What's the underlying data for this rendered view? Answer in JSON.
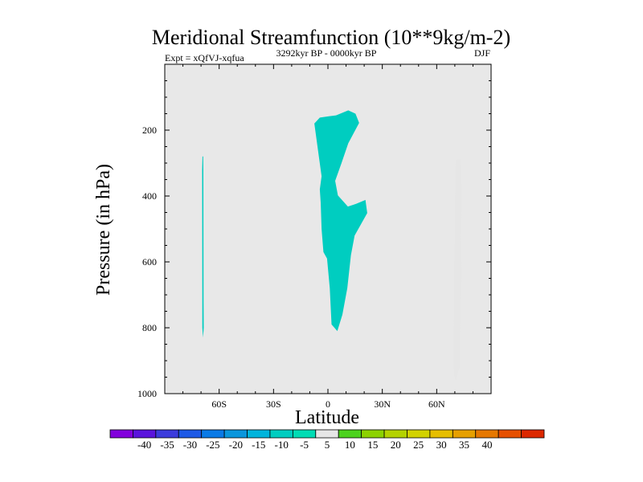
{
  "chart_data": {
    "type": "contour",
    "title": "Meridional Streamfunction (10**9kg/m-2)",
    "subtitle_left": "Expt = xQfVJ-xqfua",
    "subtitle_center": "3292kyr BP - 0000kyr BP",
    "subtitle_right": "DJF",
    "xlabel": "Latitude",
    "ylabel": "Pressure (in hPa)",
    "xlim": [
      -90,
      90
    ],
    "ylim": [
      1000,
      0
    ],
    "x_ticks": [
      {
        "value": -60,
        "label": "60S"
      },
      {
        "value": -30,
        "label": "30S"
      },
      {
        "value": 0,
        "label": "0"
      },
      {
        "value": 30,
        "label": "30N"
      },
      {
        "value": 60,
        "label": "60N"
      }
    ],
    "y_ticks": [
      {
        "value": 200,
        "label": "200"
      },
      {
        "value": 400,
        "label": "400"
      },
      {
        "value": 600,
        "label": "600"
      },
      {
        "value": 800,
        "label": "800"
      },
      {
        "value": 1000,
        "label": "1000"
      }
    ],
    "background_color": "#e8e8e8",
    "regions": [
      {
        "name": "southern-negative-sliver",
        "fill_index": 7,
        "points": [
          [
            -69.2,
            280
          ],
          [
            -68.8,
            280
          ],
          [
            -68.7,
            320
          ],
          [
            -68.6,
            720
          ],
          [
            -68.5,
            800
          ],
          [
            -68.9,
            830
          ],
          [
            -69.3,
            800
          ],
          [
            -69.3,
            720
          ],
          [
            -69.4,
            320
          ]
        ]
      },
      {
        "name": "tropical-negative-cell",
        "fill_index": 7,
        "points": [
          [
            -7.5,
            180
          ],
          [
            -4.5,
            162
          ],
          [
            0.5,
            158
          ],
          [
            4.5,
            155
          ],
          [
            11.2,
            140
          ],
          [
            15.2,
            150
          ],
          [
            17.2,
            178
          ],
          [
            11.2,
            240
          ],
          [
            7.5,
            300
          ],
          [
            4.0,
            354
          ],
          [
            5.5,
            398
          ],
          [
            11.0,
            432
          ],
          [
            15.5,
            424
          ],
          [
            20.7,
            412
          ],
          [
            21.7,
            452
          ],
          [
            14.7,
            520
          ],
          [
            12.7,
            580
          ],
          [
            10.7,
            680
          ],
          [
            8.0,
            760
          ],
          [
            5.2,
            810
          ],
          [
            2.0,
            790
          ],
          [
            1.0,
            680
          ],
          [
            -0.5,
            590
          ],
          [
            -2.5,
            570
          ],
          [
            -3.5,
            500
          ],
          [
            -4.0,
            420
          ],
          [
            -4.5,
            380
          ],
          [
            -3.5,
            340
          ],
          [
            -5.0,
            280
          ]
        ]
      },
      {
        "name": "northern-positive-tongue",
        "fill_index": 9,
        "points": [
          [
            70.7,
            290
          ],
          [
            73.2,
            288
          ],
          [
            73.6,
            400
          ],
          [
            73.3,
            520
          ],
          [
            73.5,
            640
          ],
          [
            73.1,
            760
          ],
          [
            72.8,
            880
          ],
          [
            72.6,
            920
          ],
          [
            71.5,
            940
          ],
          [
            70.5,
            962
          ],
          [
            69.5,
            940
          ],
          [
            69.3,
            880
          ],
          [
            69.5,
            760
          ],
          [
            69.6,
            640
          ],
          [
            70.0,
            520
          ],
          [
            70.2,
            400
          ]
        ]
      }
    ],
    "colorbar": {
      "labels": [
        "-40",
        "-35",
        "-30",
        "-25",
        "-20",
        "-15",
        "-10",
        "-5",
        "5",
        "10",
        "15",
        "20",
        "25",
        "30",
        "35",
        "40"
      ],
      "colors": [
        "#8200dc",
        "#5a14dc",
        "#3c3cdc",
        "#1e5ae6",
        "#0a7ae6",
        "#0a96dc",
        "#00b4dc",
        "#00cdc0",
        "#00dcb4",
        "#e6e6e6",
        "#4cd21e",
        "#8cd200",
        "#b4d200",
        "#d2d200",
        "#e6be00",
        "#e6a000",
        "#e67800",
        "#e65000",
        "#dc2800"
      ]
    }
  }
}
